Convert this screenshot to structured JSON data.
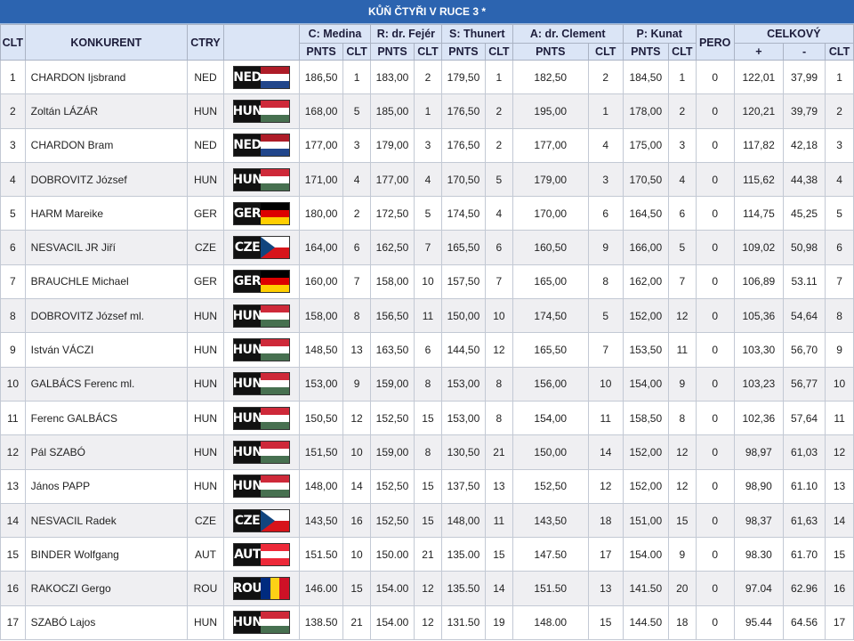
{
  "title": "KŮŇ ČTYŘI V RUCE 3 *",
  "headers": {
    "clt": "CLT",
    "konkurent": "KONKURENT",
    "ctry": "CTRY",
    "judges": [
      {
        "label": "C: Medina",
        "pnts": "PNTS",
        "clt": "CLT"
      },
      {
        "label": "R: dr. Fejér",
        "pnts": "PNTS",
        "clt": "CLT"
      },
      {
        "label": "S: Thunert",
        "pnts": "PNTS",
        "clt": "CLT"
      },
      {
        "label": "A: dr. Clement",
        "pnts": "PNTS",
        "clt": "CLT"
      },
      {
        "label": "P: Kunat",
        "pnts": "PNTS",
        "clt": "CLT"
      }
    ],
    "pero": "PERO",
    "celkovy": "CELKOVÝ",
    "plus": "+",
    "minus": "-",
    "total_clt": "CLT"
  },
  "flag_colors": {
    "NED": [
      "#ae1c28",
      "#ffffff",
      "#21468b"
    ],
    "HUN": [
      "#ce2939",
      "#ffffff",
      "#477050"
    ],
    "GER": [
      "#000000",
      "#dd0000",
      "#ffce00"
    ],
    "AUT": [
      "#ed2939",
      "#ffffff",
      "#ed2939"
    ],
    "ROU": [
      "#002b7f",
      "#fcd116",
      "#ce1126"
    ],
    "CZE": [
      "#ffffff",
      "#d7141a",
      "#11457e"
    ]
  },
  "rows": [
    {
      "clt": "1",
      "name": "CHARDON Ijsbrand",
      "ctry": "NED",
      "s": [
        [
          "186,50",
          "1"
        ],
        [
          "183,00",
          "2"
        ],
        [
          "179,50",
          "1"
        ],
        [
          "182,50",
          "2"
        ],
        [
          "184,50",
          "1"
        ]
      ],
      "pero": "0",
      "plus": "122,01",
      "minus": "37,99",
      "total": "1"
    },
    {
      "clt": "2",
      "name": "Zoltán LÁZÁR",
      "ctry": "HUN",
      "s": [
        [
          "168,00",
          "5"
        ],
        [
          "185,00",
          "1"
        ],
        [
          "176,50",
          "2"
        ],
        [
          "195,00",
          "1"
        ],
        [
          "178,00",
          "2"
        ]
      ],
      "pero": "0",
      "plus": "120,21",
      "minus": "39,79",
      "total": "2"
    },
    {
      "clt": "3",
      "name": "CHARDON Bram",
      "ctry": "NED",
      "s": [
        [
          "177,00",
          "3"
        ],
        [
          "179,00",
          "3"
        ],
        [
          "176,50",
          "2"
        ],
        [
          "177,00",
          "4"
        ],
        [
          "175,00",
          "3"
        ]
      ],
      "pero": "0",
      "plus": "117,82",
      "minus": "42,18",
      "total": "3"
    },
    {
      "clt": "4",
      "name": "DOBROVITZ József",
      "ctry": "HUN",
      "s": [
        [
          "171,00",
          "4"
        ],
        [
          "177,00",
          "4"
        ],
        [
          "170,50",
          "5"
        ],
        [
          "179,00",
          "3"
        ],
        [
          "170,50",
          "4"
        ]
      ],
      "pero": "0",
      "plus": "115,62",
      "minus": "44,38",
      "total": "4"
    },
    {
      "clt": "5",
      "name": "HARM Mareike",
      "ctry": "GER",
      "s": [
        [
          "180,00",
          "2"
        ],
        [
          "172,50",
          "5"
        ],
        [
          "174,50",
          "4"
        ],
        [
          "170,00",
          "6"
        ],
        [
          "164,50",
          "6"
        ]
      ],
      "pero": "0",
      "plus": "114,75",
      "minus": "45,25",
      "total": "5"
    },
    {
      "clt": "6",
      "name": "NESVACIL JR Jiří",
      "ctry": "CZE",
      "s": [
        [
          "164,00",
          "6"
        ],
        [
          "162,50",
          "7"
        ],
        [
          "165,50",
          "6"
        ],
        [
          "160,50",
          "9"
        ],
        [
          "166,00",
          "5"
        ]
      ],
      "pero": "0",
      "plus": "109,02",
      "minus": "50,98",
      "total": "6"
    },
    {
      "clt": "7",
      "name": "BRAUCHLE Michael",
      "ctry": "GER",
      "s": [
        [
          "160,00",
          "7"
        ],
        [
          "158,00",
          "10"
        ],
        [
          "157,50",
          "7"
        ],
        [
          "165,00",
          "8"
        ],
        [
          "162,00",
          "7"
        ]
      ],
      "pero": "0",
      "plus": "106,89",
      "minus": "53.11",
      "total": "7"
    },
    {
      "clt": "8",
      "name": "DOBROVITZ József ml.",
      "ctry": "HUN",
      "s": [
        [
          "158,00",
          "8"
        ],
        [
          "156,50",
          "11"
        ],
        [
          "150,00",
          "10"
        ],
        [
          "174,50",
          "5"
        ],
        [
          "152,00",
          "12"
        ]
      ],
      "pero": "0",
      "plus": "105,36",
      "minus": "54,64",
      "total": "8"
    },
    {
      "clt": "9",
      "name": "István VÁCZI",
      "ctry": "HUN",
      "s": [
        [
          "148,50",
          "13"
        ],
        [
          "163,50",
          "6"
        ],
        [
          "144,50",
          "12"
        ],
        [
          "165,50",
          "7"
        ],
        [
          "153,50",
          "11"
        ]
      ],
      "pero": "0",
      "plus": "103,30",
      "minus": "56,70",
      "total": "9"
    },
    {
      "clt": "10",
      "name": "GALBÁCS Ferenc ml.",
      "ctry": "HUN",
      "s": [
        [
          "153,00",
          "9"
        ],
        [
          "159,00",
          "8"
        ],
        [
          "153,00",
          "8"
        ],
        [
          "156,00",
          "10"
        ],
        [
          "154,00",
          "9"
        ]
      ],
      "pero": "0",
      "plus": "103,23",
      "minus": "56,77",
      "total": "10"
    },
    {
      "clt": "11",
      "name": "Ferenc GALBÁCS",
      "ctry": "HUN",
      "s": [
        [
          "150,50",
          "12"
        ],
        [
          "152,50",
          "15"
        ],
        [
          "153,00",
          "8"
        ],
        [
          "154,00",
          "11"
        ],
        [
          "158,50",
          "8"
        ]
      ],
      "pero": "0",
      "plus": "102,36",
      "minus": "57,64",
      "total": "11"
    },
    {
      "clt": "12",
      "name": "Pál SZABÓ",
      "ctry": "HUN",
      "s": [
        [
          "151,50",
          "10"
        ],
        [
          "159,00",
          "8"
        ],
        [
          "130,50",
          "21"
        ],
        [
          "150,00",
          "14"
        ],
        [
          "152,00",
          "12"
        ]
      ],
      "pero": "0",
      "plus": "98,97",
      "minus": "61,03",
      "total": "12"
    },
    {
      "clt": "13",
      "name": "János PAPP",
      "ctry": "HUN",
      "s": [
        [
          "148,00",
          "14"
        ],
        [
          "152,50",
          "15"
        ],
        [
          "137,50",
          "13"
        ],
        [
          "152,50",
          "12"
        ],
        [
          "152,00",
          "12"
        ]
      ],
      "pero": "0",
      "plus": "98,90",
      "minus": "61.10",
      "total": "13"
    },
    {
      "clt": "14",
      "name": "NESVACIL Radek",
      "ctry": "CZE",
      "s": [
        [
          "143,50",
          "16"
        ],
        [
          "152,50",
          "15"
        ],
        [
          "148,00",
          "11"
        ],
        [
          "143,50",
          "18"
        ],
        [
          "151,00",
          "15"
        ]
      ],
      "pero": "0",
      "plus": "98,37",
      "minus": "61,63",
      "total": "14"
    },
    {
      "clt": "15",
      "name": "BINDER Wolfgang",
      "ctry": "AUT",
      "s": [
        [
          "151.50",
          "10"
        ],
        [
          "150.00",
          "21"
        ],
        [
          "135.00",
          "15"
        ],
        [
          "147.50",
          "17"
        ],
        [
          "154.00",
          "9"
        ]
      ],
      "pero": "0",
      "plus": "98.30",
      "minus": "61.70",
      "total": "15"
    },
    {
      "clt": "16",
      "name": "RAKOCZI Gergo",
      "ctry": "ROU",
      "s": [
        [
          "146.00",
          "15"
        ],
        [
          "154.00",
          "12"
        ],
        [
          "135.50",
          "14"
        ],
        [
          "151.50",
          "13"
        ],
        [
          "141.50",
          "20"
        ]
      ],
      "pero": "0",
      "plus": "97.04",
      "minus": "62.96",
      "total": "16"
    },
    {
      "clt": "17",
      "name": "SZABÓ Lajos",
      "ctry": "HUN",
      "s": [
        [
          "138.50",
          "21"
        ],
        [
          "154.00",
          "12"
        ],
        [
          "131.50",
          "19"
        ],
        [
          "148.00",
          "15"
        ],
        [
          "144.50",
          "18"
        ]
      ],
      "pero": "0",
      "plus": "95.44",
      "minus": "64.56",
      "total": "17"
    }
  ]
}
